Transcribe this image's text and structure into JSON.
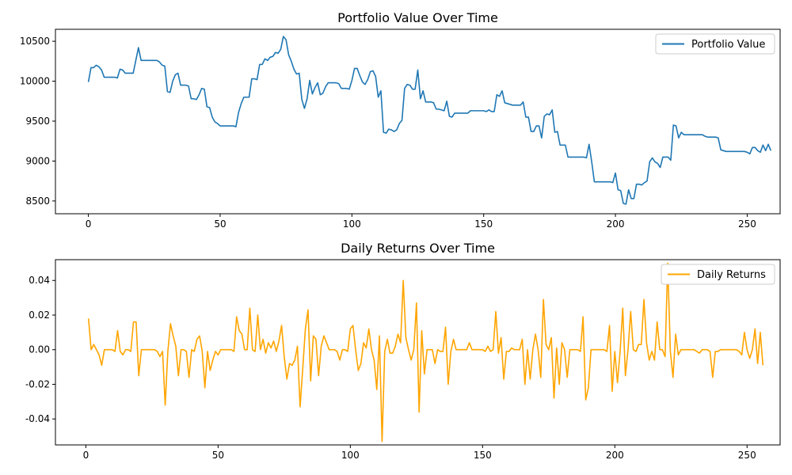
{
  "chart_data": [
    {
      "type": "line",
      "title": "Portfolio Value Over Time",
      "xlabel": "",
      "ylabel": "",
      "xlim": [
        -12.5,
        262.5
      ],
      "ylim": [
        8340,
        10650
      ],
      "x_ticks": [
        0,
        50,
        100,
        150,
        200,
        250
      ],
      "y_ticks": [
        8500,
        9000,
        9500,
        10000,
        10500
      ],
      "grid": false,
      "legend_position": "top-right",
      "series": [
        {
          "name": "Portfolio Value",
          "color": "#1f77b4",
          "x_start": 0,
          "values": [
            9990,
            10170,
            10170,
            10200,
            10180,
            10140,
            10050,
            10050,
            10050,
            10050,
            10050,
            10040,
            10150,
            10140,
            10100,
            10100,
            10100,
            10100,
            10260,
            10420,
            10260,
            10260,
            10260,
            10260,
            10260,
            10260,
            10260,
            10240,
            10200,
            10190,
            9870,
            9860,
            10000,
            10080,
            10100,
            9950,
            9950,
            9950,
            9940,
            9780,
            9780,
            9770,
            9830,
            9910,
            9900,
            9680,
            9670,
            9550,
            9490,
            9470,
            9440,
            9440,
            9440,
            9440,
            9440,
            9440,
            9430,
            9610,
            9720,
            9800,
            9800,
            9800,
            10030,
            10030,
            10020,
            10210,
            10210,
            10280,
            10260,
            10300,
            10310,
            10360,
            10350,
            10400,
            10560,
            10520,
            10330,
            10250,
            10150,
            10090,
            10100,
            9770,
            9660,
            9780,
            10010,
            9840,
            9920,
            9980,
            9830,
            9850,
            9930,
            9980,
            9980,
            9980,
            9980,
            9970,
            9910,
            9910,
            9910,
            9900,
            10010,
            10160,
            10160,
            10070,
            9990,
            9960,
            10020,
            10120,
            10130,
            10060,
            9800,
            9880,
            9360,
            9350,
            9400,
            9390,
            9370,
            9390,
            9470,
            9510,
            9910,
            9960,
            9950,
            9900,
            9900,
            10140,
            9780,
            9880,
            9740,
            9740,
            9740,
            9730,
            9650,
            9650,
            9640,
            9630,
            9750,
            9560,
            9550,
            9600,
            9600,
            9600,
            9600,
            9600,
            9600,
            9630,
            9630,
            9630,
            9630,
            9630,
            9630,
            9620,
            9640,
            9620,
            9620,
            9830,
            9810,
            9880,
            9730,
            9720,
            9710,
            9700,
            9700,
            9700,
            9700,
            9740,
            9550,
            9550,
            9370,
            9370,
            9440,
            9440,
            9290,
            9560,
            9590,
            9580,
            9640,
            9360,
            9370,
            9200,
            9200,
            9200,
            9050,
            9050,
            9050,
            9050,
            9050,
            9050,
            9050,
            9040,
            9210,
            8990,
            8740,
            8740,
            8740,
            8740,
            8740,
            8740,
            8740,
            8730,
            8850,
            8640,
            8630,
            8470,
            8460,
            8640,
            8530,
            8530,
            8710,
            8710,
            8700,
            8730,
            8750,
            8990,
            9040,
            8990,
            8970,
            8920,
            9050,
            9050,
            9050,
            9010,
            9450,
            9440,
            9290,
            9360,
            9330,
            9330,
            9330,
            9330,
            9330,
            9330,
            9330,
            9330,
            9310,
            9300,
            9300,
            9300,
            9300,
            9290,
            9140,
            9130,
            9120,
            9120,
            9120,
            9120,
            9120,
            9120,
            9120,
            9120,
            9110,
            9090,
            9170,
            9170,
            9130,
            9110,
            9200,
            9130,
            9210,
            9130
          ]
        }
      ]
    },
    {
      "type": "line",
      "title": "Daily Returns Over Time",
      "xlabel": "",
      "ylabel": "",
      "xlim": [
        -11.5,
        262.5
      ],
      "ylim": [
        -0.055,
        0.052
      ],
      "x_ticks": [
        0,
        50,
        100,
        150,
        200,
        250
      ],
      "y_ticks": [
        -0.04,
        -0.02,
        0.0,
        0.02,
        0.04
      ],
      "grid": false,
      "legend_position": "top-right",
      "series": [
        {
          "name": "Daily Returns",
          "color": "#ffa500",
          "x_start": 1,
          "values": [
            0.018,
            0.0,
            0.003,
            0.0,
            -0.003,
            -0.009,
            0.0,
            0.0,
            0.0,
            0.0,
            -0.001,
            0.011,
            -0.001,
            -0.003,
            0.0,
            0.0,
            -0.001,
            0.016,
            0.016,
            -0.015,
            0.0,
            0.0,
            0.0,
            0.0,
            0.0,
            0.0,
            -0.001,
            -0.004,
            -0.001,
            -0.032,
            -0.001,
            0.015,
            0.008,
            0.002,
            -0.015,
            0.0,
            0.0,
            -0.001,
            -0.016,
            0.0,
            -0.001,
            0.006,
            0.008,
            -0.001,
            -0.022,
            -0.001,
            -0.012,
            -0.006,
            -0.001,
            -0.003,
            0.0,
            0.0,
            0.0,
            0.0,
            0.0,
            -0.001,
            0.019,
            0.011,
            0.009,
            0.0,
            0.0,
            0.024,
            0.0,
            -0.001,
            0.02,
            0.0,
            0.006,
            -0.002,
            0.004,
            0.001,
            0.005,
            -0.001,
            0.005,
            0.014,
            -0.004,
            -0.017,
            -0.008,
            -0.009,
            -0.006,
            0.002,
            -0.033,
            -0.011,
            0.012,
            0.023,
            -0.018,
            0.008,
            0.006,
            -0.015,
            0.002,
            0.008,
            0.004,
            0.0,
            0.0,
            0.0,
            -0.001,
            -0.006,
            0.0,
            0.0,
            -0.001,
            0.012,
            0.014,
            0.0,
            -0.012,
            -0.008,
            0.004,
            0.001,
            0.012,
            0.0,
            -0.006,
            -0.023,
            0.008,
            -0.053,
            -0.001,
            0.006,
            -0.002,
            -0.002,
            0.002,
            0.009,
            0.004,
            0.04,
            0.007,
            0.0,
            -0.006,
            0.0,
            0.027,
            -0.036,
            0.011,
            -0.014,
            0.0,
            0.0,
            0.0,
            -0.008,
            0.0,
            -0.001,
            -0.001,
            0.013,
            -0.02,
            -0.001,
            0.006,
            0.0,
            0.0,
            0.0,
            0.0,
            0.0,
            0.004,
            0.0,
            0.0,
            0.0,
            0.0,
            0.0,
            -0.001,
            0.002,
            -0.001,
            0.0,
            0.022,
            -0.002,
            0.007,
            -0.017,
            -0.001,
            -0.001,
            0.001,
            0.0,
            0.0,
            0.0,
            0.006,
            -0.02,
            0.0,
            -0.017,
            0.0,
            0.009,
            0.0,
            -0.016,
            0.029,
            0.003,
            0.0,
            0.007,
            -0.028,
            0.001,
            -0.02,
            0.004,
            0.0,
            -0.016,
            0.0,
            0.0,
            0.0,
            0.0,
            -0.001,
            0.019,
            -0.029,
            -0.022,
            0.0,
            0.0,
            0.0,
            0.0,
            0.0,
            0.0,
            -0.001,
            0.014,
            -0.024,
            -0.001,
            -0.019,
            -0.001,
            0.024,
            -0.015,
            0.0,
            0.022,
            0.0,
            -0.001,
            0.003,
            0.003,
            0.029,
            0.004,
            -0.006,
            -0.001,
            -0.006,
            0.016,
            0.0,
            0.0,
            -0.004,
            0.05,
            -0.001,
            -0.016,
            0.009,
            -0.003,
            0.0,
            0.0,
            0.0,
            0.0,
            0.0,
            0.0,
            -0.001,
            -0.002,
            0.0,
            0.0,
            0.0,
            -0.001,
            -0.016,
            -0.001,
            -0.001,
            0.0,
            0.0,
            0.0,
            0.0,
            0.0,
            0.0,
            0.0,
            -0.001,
            -0.003,
            0.01,
            0.0,
            -0.005,
            0.0,
            0.012,
            -0.008,
            0.01,
            -0.009
          ]
        }
      ]
    }
  ]
}
